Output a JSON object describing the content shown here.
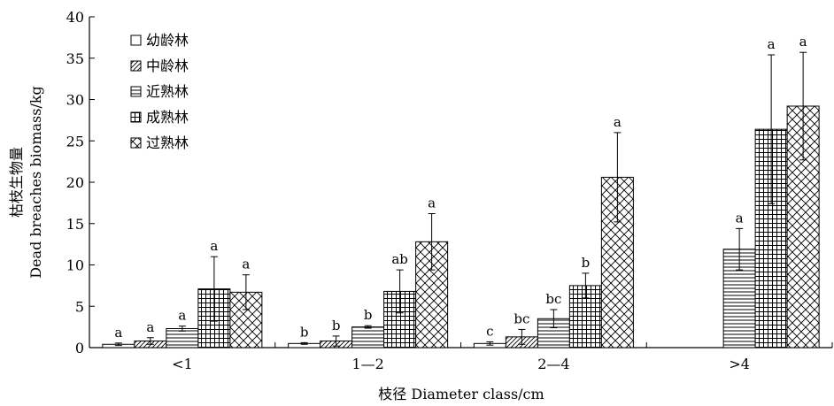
{
  "chart_data": {
    "type": "bar",
    "title": "",
    "xlabel": "枝径  Diameter class/cm",
    "ylabel_cn": "枯枝生物量",
    "ylabel_en": "Dead breaches biomass/kg",
    "ylim": [
      0,
      40
    ],
    "yticks": [
      0,
      5,
      10,
      15,
      20,
      25,
      30,
      35,
      40
    ],
    "grid": false,
    "legend_position": "top-left",
    "categories": [
      "<1",
      "1—2",
      "2—4",
      ">4"
    ],
    "series": [
      {
        "name": "幼龄林",
        "pattern": "blank",
        "values": [
          0.4,
          0.5,
          0.5,
          null
        ],
        "errors": [
          0.15,
          0.1,
          0.2,
          null
        ],
        "labels": [
          "a",
          "b",
          "c",
          ""
        ]
      },
      {
        "name": "中龄林",
        "pattern": "diagonal",
        "values": [
          0.8,
          0.8,
          1.3,
          null
        ],
        "errors": [
          0.4,
          0.6,
          0.9,
          null
        ],
        "labels": [
          "a",
          "b",
          "bc",
          ""
        ]
      },
      {
        "name": "近熟林",
        "pattern": "horizontal",
        "values": [
          2.3,
          2.5,
          3.5,
          11.9
        ],
        "errors": [
          0.3,
          0.15,
          1.1,
          2.5
        ],
        "labels": [
          "a",
          "b",
          "bc",
          "a"
        ]
      },
      {
        "name": "成熟林",
        "pattern": "grid",
        "values": [
          7.1,
          6.8,
          7.5,
          26.4
        ],
        "errors": [
          3.9,
          2.6,
          1.5,
          9.0
        ],
        "labels": [
          "a",
          "ab",
          "b",
          "a"
        ]
      },
      {
        "name": "过熟林",
        "pattern": "crosshatch",
        "values": [
          6.7,
          12.8,
          20.6,
          29.2
        ],
        "errors": [
          2.1,
          3.4,
          5.4,
          6.5
        ],
        "labels": [
          "a",
          "a",
          "a",
          "a"
        ]
      }
    ]
  }
}
